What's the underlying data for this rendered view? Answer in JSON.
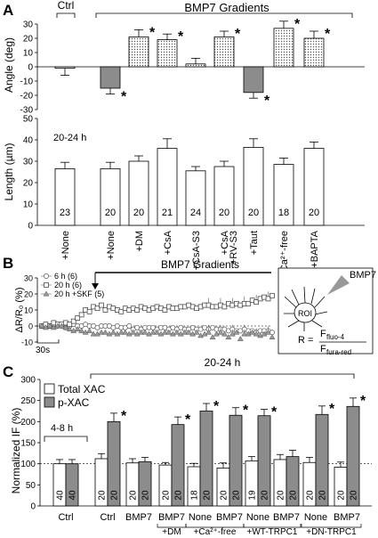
{
  "panels": {
    "a": "A",
    "b": "B",
    "c": "C"
  },
  "chart_data": [
    {
      "id": "A-angle",
      "type": "bar",
      "group_labels": {
        "ctrl": "Ctrl",
        "gradients": "BMP7 Gradients"
      },
      "categories": [
        "+None",
        "+None",
        "+DM",
        "+CsA",
        "+CsA-S3",
        "+CsA\n+RV-S3",
        "+Taut",
        "+Ca²⁺-free",
        "+BAPTA"
      ],
      "values": [
        -1,
        -15,
        21,
        19,
        2,
        21,
        -18,
        27,
        20
      ],
      "errors": [
        5,
        4,
        5,
        4,
        4,
        4,
        4,
        5,
        5
      ],
      "significant": [
        false,
        true,
        true,
        true,
        false,
        true,
        true,
        true,
        true
      ],
      "bar_fills": [
        "white",
        "gray",
        "dots",
        "dots",
        "dots",
        "dots",
        "gray",
        "dots",
        "dots"
      ],
      "ylabel": "Angle (deg)",
      "ylim": [
        -30,
        30
      ],
      "yticks": [
        -30,
        -20,
        -10,
        0,
        10,
        20,
        30
      ]
    },
    {
      "id": "A-length",
      "type": "bar",
      "annotation": "20-24 h",
      "categories": [
        "+None",
        "+None",
        "+DM",
        "+CsA",
        "+CsA-S3",
        "+CsA\n+RV-S3",
        "+Taut",
        "+Ca²⁺-free",
        "+BAPTA"
      ],
      "values": [
        26.5,
        26.5,
        30,
        36,
        25.5,
        27.5,
        36.5,
        28.5,
        36
      ],
      "errors": [
        3,
        3,
        2.5,
        4.5,
        2,
        2.5,
        4,
        3,
        3
      ],
      "n": [
        "23",
        "20",
        "20",
        "21",
        "24",
        "20",
        "20",
        "18",
        "20"
      ],
      "ylabel": "Length (µm)",
      "ylim": [
        0,
        50
      ],
      "yticks": [
        0,
        10,
        20,
        30,
        40,
        50
      ]
    },
    {
      "id": "B-ratio",
      "type": "line",
      "title": "BMP7 Gradients",
      "ylabel": "ΔR/R₀ (%)",
      "ylim": [
        -10,
        30
      ],
      "yticks": [
        -10,
        0,
        10,
        20,
        30
      ],
      "scale_bar": "30s",
      "series": [
        {
          "name": "6 h",
          "n": "(6)",
          "marker": "circle",
          "values": [
            0,
            1,
            0,
            1,
            0,
            0,
            -1,
            0,
            1,
            0,
            0,
            1,
            0,
            0,
            -1,
            0,
            0,
            0,
            -1,
            0,
            -1,
            -1,
            0,
            -2,
            -1,
            -2,
            -1,
            -1,
            -1,
            -2,
            -1,
            -1,
            -2,
            -1,
            -2,
            -1,
            -2,
            -2,
            -1,
            -2,
            -2,
            -1,
            -2,
            -1,
            -2,
            -2,
            -2,
            -3,
            -2,
            -3,
            -3,
            -2,
            -3,
            -3,
            -4,
            -3,
            -3,
            -3,
            -4
          ]
        },
        {
          "name": "20 h",
          "n": "(6)",
          "marker": "square",
          "values": [
            0,
            1,
            0,
            2,
            1,
            1,
            2,
            1,
            3,
            5,
            7,
            10,
            9,
            12,
            11,
            13,
            10,
            12,
            11,
            10,
            9,
            11,
            10,
            11,
            10,
            12,
            11,
            10,
            11,
            12,
            11,
            10,
            12,
            11,
            11,
            12,
            12,
            13,
            12,
            11,
            12,
            13,
            13,
            12,
            12,
            13,
            12,
            14,
            13,
            14,
            13,
            14,
            14,
            16,
            15,
            17,
            18,
            17,
            19
          ]
        },
        {
          "name": "20 h",
          "n": "(5)",
          "extra": "+SKF",
          "marker": "triangle",
          "values": [
            0,
            -1,
            0,
            -1,
            0,
            0,
            -1,
            -2,
            -3,
            -2,
            -3,
            -4,
            -3,
            -5,
            -5,
            -4,
            -4,
            -5,
            -4,
            -5,
            -4,
            -4,
            -5,
            -4,
            -5,
            -4,
            -4,
            -5,
            -4,
            -4,
            -5,
            -4,
            -4,
            -5,
            -4,
            -5,
            -4,
            -4,
            -5,
            -4,
            -6,
            -5,
            -4,
            -7,
            -5,
            -4,
            -5,
            -7,
            -5,
            -4,
            -8,
            -5,
            -5,
            -4,
            -5,
            -6,
            -5,
            -4,
            -7
          ]
        }
      ],
      "inset": {
        "bmp_label": "BMP7",
        "roi_label": "ROI",
        "formula_lhs": "R =",
        "numerator": "F",
        "numerator_sub": "fluo-4",
        "denominator": "F",
        "denominator_sub": "fura-red"
      }
    },
    {
      "id": "C-IF",
      "type": "bar",
      "ylabel": "Normalized IF (%)",
      "ylim": [
        0,
        300
      ],
      "yticks": [
        0,
        50,
        100,
        150,
        200,
        250,
        300
      ],
      "time_labels": {
        "early": "4-8 h",
        "late": "20-24 h"
      },
      "series": [
        {
          "name": "Total XAC",
          "fill": "white"
        },
        {
          "name": "p-XAC",
          "fill": "gray"
        }
      ],
      "groups": [
        {
          "label": "Ctrl",
          "total": 100,
          "total_err": 10,
          "p": 100,
          "p_err": 10,
          "n_total": "40",
          "n_p": "40",
          "star_total": false,
          "star_p": false
        },
        {
          "label": "Ctrl",
          "total": 112,
          "total_err": 12,
          "p": 200,
          "p_err": 20,
          "n_total": "20",
          "n_p": "20",
          "star_total": false,
          "star_p": true
        },
        {
          "label": "BMP7",
          "total": 102,
          "total_err": 10,
          "p": 105,
          "p_err": 10,
          "n_total": "20",
          "n_p": "20",
          "star_total": false,
          "star_p": false
        },
        {
          "label": "BMP7",
          "total": 97,
          "total_err": 6,
          "p": 193,
          "p_err": 18,
          "n_total": "20",
          "n_p": "20",
          "star_total": false,
          "star_p": true
        },
        {
          "label": "None",
          "total": 93,
          "total_err": 8,
          "p": 225,
          "p_err": 18,
          "n_total": "18",
          "n_p": "20",
          "star_total": false,
          "star_p": true
        },
        {
          "label": "BMP7",
          "total": 90,
          "total_err": 12,
          "p": 215,
          "p_err": 18,
          "n_total": "20",
          "n_p": "20",
          "star_total": false,
          "star_p": true
        },
        {
          "label": "None",
          "total": 107,
          "total_err": 10,
          "p": 214,
          "p_err": 15,
          "n_total": "19",
          "n_p": "20",
          "star_total": false,
          "star_p": true
        },
        {
          "label": "BMP7",
          "total": 110,
          "total_err": 12,
          "p": 117,
          "p_err": 15,
          "n_total": "20",
          "n_p": "20",
          "star_total": false,
          "star_p": false
        },
        {
          "label": "None",
          "total": 103,
          "total_err": 12,
          "p": 217,
          "p_err": 20,
          "n_total": "20",
          "n_p": "20",
          "star_total": false,
          "star_p": true
        },
        {
          "label": "BMP7",
          "total": 92,
          "total_err": 12,
          "p": 236,
          "p_err": 20,
          "n_total": "20",
          "n_p": "20",
          "star_total": false,
          "star_p": true
        }
      ],
      "sublabels": [
        {
          "text": "+DM",
          "from": 3,
          "to": 3
        },
        {
          "text": "+Ca²⁺-free",
          "from": 4,
          "to": 5
        },
        {
          "text": "+WT-TRPC1",
          "from": 6,
          "to": 7
        },
        {
          "text": "+DN-TRPC1",
          "from": 8,
          "to": 9
        }
      ]
    }
  ]
}
